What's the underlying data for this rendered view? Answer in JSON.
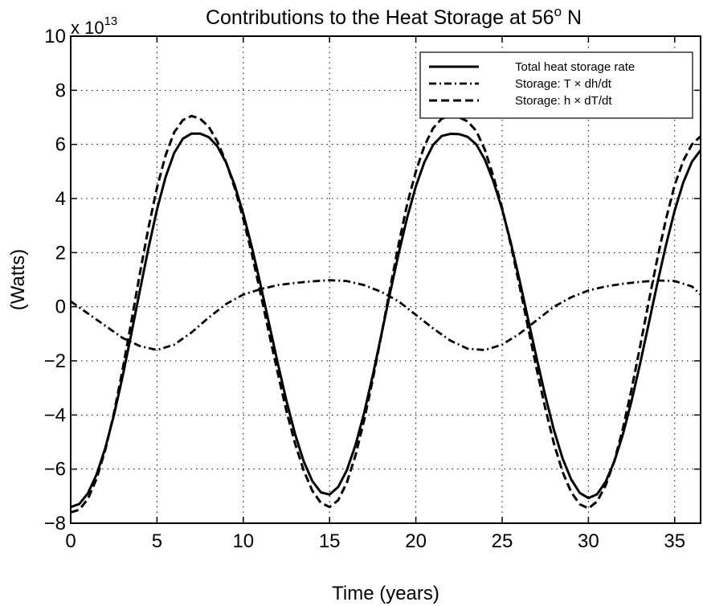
{
  "chart_data": {
    "type": "line",
    "title_parts": {
      "main": "Contributions to the Heat Storage at 56",
      "sup": "o",
      "suffix": " N"
    },
    "xlabel": "Time (years)",
    "ylabel": "(Watts)",
    "y_multiplier": {
      "base": "x 10",
      "exponent": "13"
    },
    "xlim": [
      0,
      36.5
    ],
    "ylim": [
      -8,
      10
    ],
    "xticks": [
      0,
      5,
      10,
      15,
      20,
      25,
      30,
      35
    ],
    "xtick_labels": [
      "0",
      "5",
      "10",
      "15",
      "20",
      "25",
      "30",
      "35"
    ],
    "yticks": [
      -8,
      -6,
      -4,
      -2,
      0,
      2,
      4,
      6,
      8,
      10
    ],
    "ytick_labels": [
      "−8",
      "−6",
      "−4",
      "−2",
      "0",
      "2",
      "4",
      "6",
      "8",
      "10"
    ],
    "grid": true,
    "legend_position": "top-right",
    "series": [
      {
        "name": "Total heat storage rate",
        "style": "solid",
        "x": [
          0,
          0.5,
          1,
          1.5,
          2,
          2.5,
          3,
          3.5,
          4,
          4.5,
          5,
          5.5,
          6,
          6.5,
          7,
          7.5,
          8,
          8.5,
          9,
          9.5,
          10,
          10.5,
          11,
          11.5,
          12,
          12.5,
          13,
          13.5,
          14,
          14.5,
          15,
          15.5,
          16,
          16.5,
          17,
          17.5,
          18,
          18.5,
          19,
          19.5,
          20,
          20.5,
          21,
          21.5,
          22,
          22.5,
          23,
          23.5,
          24,
          24.5,
          25,
          25.5,
          26,
          26.5,
          27,
          27.5,
          28,
          28.5,
          29,
          29.5,
          30,
          30.5,
          31,
          31.5,
          32,
          32.5,
          33,
          33.5,
          34,
          34.5,
          35,
          35.5,
          36,
          36.5
        ],
        "values": [
          -7.4,
          -7.29,
          -6.89,
          -6.2,
          -5.23,
          -4.02,
          -2.6,
          -1.04,
          0.57,
          2.15,
          3.59,
          4.8,
          5.69,
          6.21,
          6.4,
          6.4,
          6.27,
          5.93,
          5.33,
          4.5,
          3.44,
          2.2,
          0.82,
          -0.64,
          -2.09,
          -3.47,
          -4.7,
          -5.71,
          -6.44,
          -6.86,
          -6.94,
          -6.66,
          -6.04,
          -5.12,
          -3.93,
          -2.55,
          -1.04,
          0.49,
          1.96,
          3.3,
          4.45,
          5.35,
          5.98,
          6.31,
          6.39,
          6.38,
          6.28,
          6.0,
          5.44,
          4.62,
          3.6,
          2.38,
          1.01,
          -0.45,
          -1.9,
          -3.29,
          -4.55,
          -5.6,
          -6.38,
          -6.88,
          -7.07,
          -6.93,
          -6.47,
          -5.72,
          -4.71,
          -3.48,
          -2.09,
          -0.61,
          0.88,
          2.29,
          3.56,
          4.6,
          5.36,
          5.79
        ]
      },
      {
        "name": "Storage: T × dh/dt",
        "style": "dashdot",
        "x": [
          0,
          1,
          2,
          3,
          4,
          5,
          6,
          7,
          8,
          9,
          10,
          11,
          12,
          13,
          14,
          15,
          16,
          17,
          18,
          19,
          20,
          21,
          22,
          23,
          24,
          25,
          26,
          27,
          28,
          29,
          30,
          31,
          32,
          33,
          34,
          35,
          36,
          36.5
        ],
        "values": [
          0.2,
          -0.25,
          -0.7,
          -1.15,
          -1.45,
          -1.6,
          -1.4,
          -0.95,
          -0.4,
          0.1,
          0.45,
          0.65,
          0.8,
          0.88,
          0.94,
          0.98,
          0.95,
          0.8,
          0.55,
          0.2,
          -0.3,
          -0.8,
          -1.25,
          -1.55,
          -1.6,
          -1.4,
          -1.0,
          -0.5,
          0.0,
          0.35,
          0.6,
          0.75,
          0.85,
          0.92,
          0.97,
          0.95,
          0.75,
          0.45
        ]
      },
      {
        "name": "Storage: h × dT/dt",
        "style": "dashed",
        "x": [
          0,
          0.5,
          1,
          1.5,
          2,
          2.5,
          3,
          3.5,
          4,
          4.5,
          5,
          5.5,
          6,
          6.5,
          7,
          7.5,
          8,
          8.5,
          9,
          9.5,
          10,
          10.5,
          11,
          11.5,
          12,
          12.5,
          13,
          13.5,
          14,
          14.5,
          15,
          15.5,
          16,
          16.5,
          17,
          17.5,
          18,
          18.5,
          19,
          19.5,
          20,
          20.5,
          21,
          21.5,
          22,
          22.5,
          23,
          23.5,
          24,
          24.5,
          25,
          25.5,
          26,
          26.5,
          27,
          27.5,
          28,
          28.5,
          29,
          29.5,
          30,
          30.5,
          31,
          31.5,
          32,
          32.5,
          33,
          33.5,
          34,
          34.5,
          35,
          35.5,
          36,
          36.5
        ],
        "values": [
          -7.6,
          -7.5,
          -7.1,
          -6.35,
          -5.3,
          -3.95,
          -2.35,
          -0.6,
          1.2,
          2.9,
          4.4,
          5.6,
          6.45,
          6.9,
          7.05,
          6.95,
          6.65,
          6.1,
          5.35,
          4.4,
          3.25,
          1.95,
          0.5,
          -1.0,
          -2.45,
          -3.85,
          -5.05,
          -6.05,
          -6.8,
          -7.25,
          -7.4,
          -7.15,
          -6.5,
          -5.5,
          -4.2,
          -2.7,
          -1.05,
          0.65,
          2.3,
          3.8,
          5.0,
          5.95,
          6.6,
          6.95,
          7.05,
          7.0,
          6.85,
          6.5,
          5.8,
          4.8,
          3.65,
          2.3,
          0.8,
          -0.75,
          -2.3,
          -3.75,
          -5.05,
          -6.1,
          -6.85,
          -7.3,
          -7.45,
          -7.2,
          -6.6,
          -5.7,
          -4.5,
          -3.05,
          -1.45,
          0.2,
          1.8,
          3.25,
          4.5,
          5.4,
          6.0,
          6.3
        ]
      }
    ]
  }
}
